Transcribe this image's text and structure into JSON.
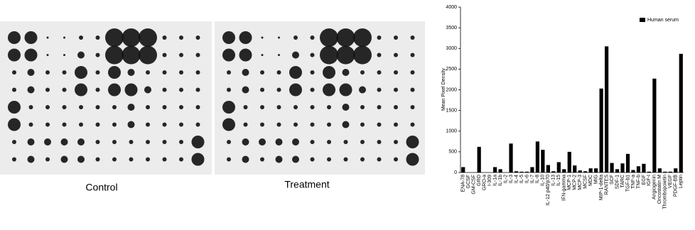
{
  "images": [
    {
      "caption": "Control"
    },
    {
      "caption": "Treatment"
    }
  ],
  "chart_data": {
    "type": "bar",
    "y_label": "Mean Pixel Density",
    "categories": [
      "ENA-78",
      "GCSF",
      "GM-CSF",
      "GRO",
      "GRO-a",
      "I-309",
      "IL-1a",
      "IL-1b",
      "IL-2",
      "IL-3",
      "IL-4",
      "IL-5",
      "IL-6",
      "IL-7",
      "IL-8",
      "IL-10",
      "IL-12 p40/p70",
      "IL-13",
      "IL-15",
      "IFN-gamma",
      "MCP-1",
      "MCP-2",
      "MCP-3",
      "MCSF",
      "MDC",
      "MIG",
      "MIP-1-delta",
      "RANTES",
      "SCF",
      "SDF-1",
      "TARC",
      "TGF-b1",
      "TNF-a",
      "TNF-b",
      "EGF",
      "IGF-I",
      "Angiogenin",
      "Oncostatin M",
      "Thrombopoietin",
      "VEGF",
      "PDGF-BB",
      "Leptin"
    ],
    "series": [
      {
        "name": "Human serum",
        "color": "#000000",
        "values": [
          130,
          0,
          0,
          620,
          0,
          0,
          130,
          80,
          0,
          700,
          30,
          20,
          20,
          130,
          750,
          550,
          180,
          30,
          250,
          80,
          500,
          170,
          50,
          30,
          100,
          100,
          2030,
          3050,
          230,
          80,
          220,
          450,
          60,
          150,
          210,
          20,
          2270,
          100,
          20,
          20,
          100,
          2870
        ]
      }
    ],
    "ylim": [
      0,
      4000
    ],
    "yticks": [
      0,
      500,
      1000,
      1500,
      2000,
      2500,
      3000,
      3500,
      4000
    ],
    "legend": "top-right"
  }
}
